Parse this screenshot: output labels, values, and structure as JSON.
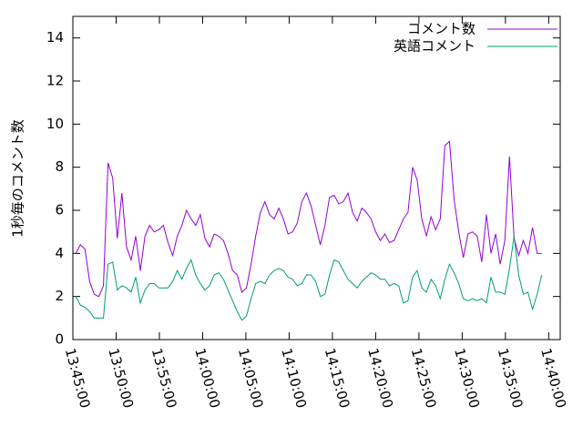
{
  "chart_data": {
    "type": "line",
    "y_label": "1秒毎のコメント数",
    "xlim": [
      "13:45:00",
      "14:41:20"
    ],
    "xticks": [
      "13:45:00",
      "13:50:00",
      "13:55:00",
      "14:00:00",
      "14:05:00",
      "14:10:00",
      "14:15:00",
      "14:20:00",
      "14:25:00",
      "14:30:00",
      "14:35:00",
      "14:40:00"
    ],
    "ylim": [
      0,
      15
    ],
    "yticks": [
      0,
      2,
      4,
      6,
      8,
      10,
      12,
      14
    ],
    "legend": "top-right",
    "x": [
      "13:45:20",
      "13:45:52",
      "13:46:24",
      "13:46:56",
      "13:47:28",
      "13:48:00",
      "13:48:32",
      "13:49:04",
      "13:49:36",
      "13:50:08",
      "13:50:40",
      "13:51:12",
      "13:51:44",
      "13:52:16",
      "13:52:48",
      "13:53:20",
      "13:53:52",
      "13:54:24",
      "13:54:56",
      "13:55:28",
      "13:56:00",
      "13:56:32",
      "13:57:04",
      "13:57:36",
      "13:58:08",
      "13:58:40",
      "13:59:12",
      "13:59:44",
      "14:00:16",
      "14:00:48",
      "14:01:20",
      "14:01:52",
      "14:02:24",
      "14:02:56",
      "14:03:28",
      "14:04:00",
      "14:04:32",
      "14:05:04",
      "14:05:36",
      "14:06:08",
      "14:06:40",
      "14:07:12",
      "14:07:44",
      "14:08:16",
      "14:08:48",
      "14:09:20",
      "14:09:52",
      "14:10:24",
      "14:10:56",
      "14:11:28",
      "14:12:00",
      "14:12:32",
      "14:13:04",
      "14:13:36",
      "14:14:08",
      "14:14:40",
      "14:15:12",
      "14:15:44",
      "14:16:16",
      "14:16:48",
      "14:17:20",
      "14:17:52",
      "14:18:24",
      "14:18:56",
      "14:19:28",
      "14:20:00",
      "14:20:32",
      "14:21:04",
      "14:21:36",
      "14:22:08",
      "14:22:40",
      "14:23:12",
      "14:23:44",
      "14:24:16",
      "14:24:48",
      "14:25:20",
      "14:25:52",
      "14:26:24",
      "14:26:56",
      "14:27:28",
      "14:28:00",
      "14:28:32",
      "14:29:04",
      "14:29:36",
      "14:30:08",
      "14:30:40",
      "14:31:12",
      "14:31:44",
      "14:32:16",
      "14:32:48",
      "14:33:20",
      "14:33:52",
      "14:34:24",
      "14:34:56",
      "14:35:28",
      "14:36:00",
      "14:36:32",
      "14:37:04",
      "14:37:36",
      "14:38:08",
      "14:38:40",
      "14:39:12"
    ],
    "series": [
      {
        "name": "コメント数",
        "color": "#9400d3",
        "values": [
          4.0,
          4.4,
          4.2,
          2.7,
          2.1,
          2.0,
          2.5,
          8.2,
          7.5,
          4.7,
          6.8,
          4.3,
          3.7,
          4.8,
          3.2,
          4.8,
          5.3,
          5.0,
          5.1,
          5.3,
          4.5,
          3.9,
          4.8,
          5.3,
          6.0,
          5.6,
          5.3,
          5.8,
          4.7,
          4.3,
          4.9,
          4.8,
          4.6,
          4.0,
          3.2,
          3.0,
          2.2,
          2.4,
          3.5,
          4.8,
          5.9,
          6.4,
          5.8,
          5.6,
          6.1,
          5.6,
          4.9,
          5.0,
          5.4,
          6.4,
          6.8,
          6.2,
          5.3,
          4.4,
          5.3,
          6.6,
          6.7,
          6.3,
          6.4,
          6.8,
          5.9,
          5.5,
          6.1,
          5.9,
          5.6,
          5.0,
          4.6,
          4.9,
          4.5,
          4.6,
          5.1,
          5.6,
          5.9,
          8.0,
          7.4,
          5.6,
          4.8,
          5.7,
          5.1,
          5.6,
          9.0,
          9.2,
          6.5,
          5.0,
          3.8,
          4.9,
          5.0,
          4.8,
          3.6,
          5.8,
          4.0,
          4.9,
          3.5,
          4.6,
          8.5,
          4.7,
          3.9,
          4.6,
          4.0,
          5.2,
          4.0,
          4.0
        ]
      },
      {
        "name": "英語コメント",
        "color": "#009e73",
        "values": [
          2.0,
          1.6,
          1.5,
          1.3,
          1.0,
          1.0,
          1.0,
          3.5,
          3.6,
          2.3,
          2.5,
          2.4,
          2.2,
          2.9,
          1.7,
          2.3,
          2.6,
          2.6,
          2.4,
          2.4,
          2.4,
          2.7,
          3.2,
          2.8,
          3.3,
          3.7,
          3.0,
          2.6,
          2.3,
          2.5,
          3.0,
          3.1,
          2.8,
          2.3,
          1.8,
          1.3,
          0.9,
          1.1,
          1.9,
          2.6,
          2.7,
          2.6,
          3.0,
          3.2,
          3.3,
          3.2,
          2.9,
          2.8,
          2.5,
          2.6,
          3.0,
          3.0,
          2.7,
          2.0,
          2.1,
          3.0,
          3.7,
          3.6,
          3.2,
          2.8,
          2.6,
          2.4,
          2.7,
          2.9,
          3.1,
          3.0,
          2.8,
          2.8,
          2.5,
          2.6,
          2.5,
          1.7,
          1.8,
          2.9,
          3.2,
          2.4,
          2.2,
          2.8,
          2.5,
          1.9,
          2.8,
          3.5,
          3.1,
          2.6,
          1.9,
          1.8,
          1.9,
          1.8,
          1.9,
          1.7,
          2.9,
          2.2,
          2.2,
          2.1,
          3.3,
          4.8,
          3.0,
          2.1,
          2.2,
          1.4,
          2.1,
          3.0
        ]
      }
    ]
  }
}
